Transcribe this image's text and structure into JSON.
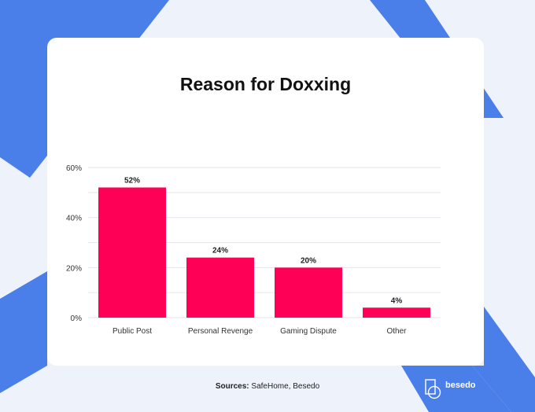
{
  "colors": {
    "background": "#eef2fb",
    "accent_blue": "#4a7fea",
    "bar": "#ff0057",
    "grid": "#e3e6ef"
  },
  "chart_data": {
    "type": "bar",
    "title": "Reason for Doxxing",
    "categories": [
      "Public Post",
      "Personal Revenge",
      "Gaming Dispute",
      "Other"
    ],
    "values": [
      52,
      24,
      20,
      4
    ],
    "data_labels": [
      "52%",
      "24%",
      "20%",
      "4%"
    ],
    "ylim": [
      0,
      60
    ],
    "yticks": [
      0,
      20,
      40,
      60
    ],
    "ytick_labels": [
      "0%",
      "20%",
      "40%",
      "60%"
    ],
    "grid": true,
    "xlabel": "",
    "ylabel": ""
  },
  "footer": {
    "sources_label": "Sources:",
    "sources_text": " SafeHome, Besedo",
    "logo_text": "besedo"
  }
}
